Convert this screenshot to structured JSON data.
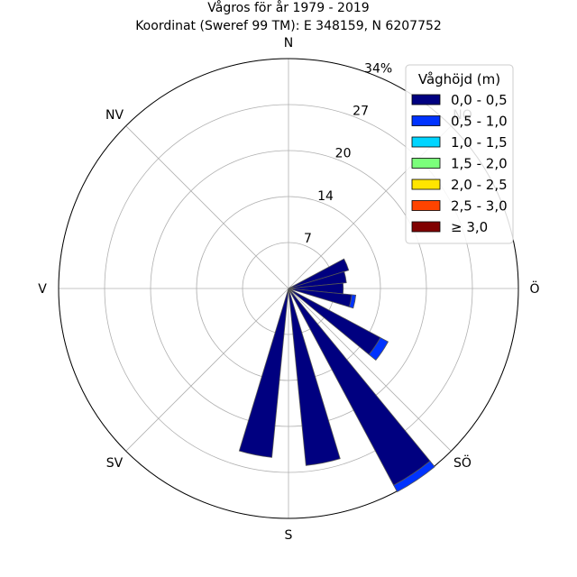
{
  "chart_data": {
    "type": "windrose",
    "title": "Vågros för år 1979 - 2019",
    "subtitle": "Koordinat (Sweref 99 TM): E 348159, N 6207752",
    "directions": [
      "N",
      "NO",
      "Ö",
      "SÖ",
      "S",
      "SV",
      "V",
      "NV"
    ],
    "radial_ticks": [
      "7",
      "14",
      "20",
      "27",
      "34%"
    ],
    "radial_tick_values": [
      6.8,
      13.6,
      20.4,
      27.2,
      34
    ],
    "rmax": 34,
    "grid": true,
    "sector_width_deg": 11.25,
    "legend": {
      "title": "Våghöjd (m)",
      "placement": "top-right",
      "entries": [
        "0,0 - 0,5",
        "0,5 - 1,0",
        "1,0 - 1,5",
        "1,5 - 2,0",
        "2,0 - 2,5",
        "2,5 - 3,0",
        "≥ 3,0"
      ],
      "colors": [
        "#000080",
        "#0033ff",
        "#00d5ff",
        "#7bff7b",
        "#ffe500",
        "#ff4400",
        "#800000"
      ]
    },
    "sectors": [
      {
        "direction_deg": 67.5,
        "values": [
          9.3,
          0.0
        ]
      },
      {
        "direction_deg": 78.75,
        "values": [
          8.6,
          0.0
        ]
      },
      {
        "direction_deg": 90.0,
        "values": [
          8.1,
          0.0
        ]
      },
      {
        "direction_deg": 101.25,
        "values": [
          9.4,
          0.6
        ]
      },
      {
        "direction_deg": 123.75,
        "values": [
          15.4,
          1.3
        ]
      },
      {
        "direction_deg": 146.25,
        "values": [
          33.0,
          1.1
        ]
      },
      {
        "direction_deg": 168.75,
        "values": [
          26.3,
          0.0
        ]
      },
      {
        "direction_deg": 191.25,
        "values": [
          25.1,
          0.0
        ]
      }
    ]
  }
}
